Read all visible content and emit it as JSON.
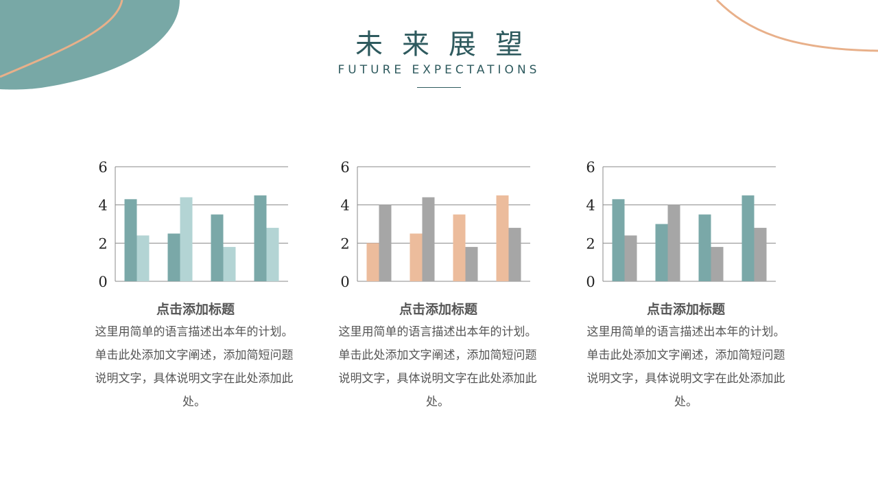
{
  "header": {
    "title": "未来展望",
    "subtitle": "FUTURE EXPECTATIONS"
  },
  "colors": {
    "teal": "#7aa8a8",
    "light_teal": "#b3d4d4",
    "peach": "#ecbc9c",
    "gray": "#a6a6a6",
    "accent_line": "#e8b08a"
  },
  "cards": [
    {
      "title": "点击添加标题",
      "body": "这里用简单的语言描述出本年的计划。单击此处添加文字阐述，添加简短问题说明文字，具体说明文字在此处添加此处。"
    },
    {
      "title": "点击添加标题",
      "body": "这里用简单的语言描述出本年的计划。单击此处添加文字阐述，添加简短问题说明文字，具体说明文字在此处添加此处。"
    },
    {
      "title": "点击添加标题",
      "body": "这里用简单的语言描述出本年的计划。单击此处添加文字阐述，添加简短问题说明文字，具体说明文字在此处添加此处。"
    }
  ],
  "chart_data": [
    {
      "type": "bar",
      "ylim": [
        0,
        6
      ],
      "yticks": [
        "0",
        "2",
        "4",
        "6"
      ],
      "grid": true,
      "series": [
        {
          "values": [
            4.3,
            2.5,
            3.5,
            4.5
          ],
          "color": "#7aa8a8"
        },
        {
          "values": [
            2.4,
            4.4,
            1.8,
            2.8
          ],
          "color": "#b3d4d4"
        }
      ]
    },
    {
      "type": "bar",
      "ylim": [
        0,
        6
      ],
      "yticks": [
        "0",
        "2",
        "4",
        "6"
      ],
      "grid": true,
      "series": [
        {
          "values": [
            2.0,
            2.5,
            3.5,
            4.5
          ],
          "color": "#ecbc9c"
        },
        {
          "values": [
            4.0,
            4.4,
            1.8,
            2.8
          ],
          "color": "#a6a6a6"
        }
      ]
    },
    {
      "type": "bar",
      "ylim": [
        0,
        6
      ],
      "yticks": [
        "0",
        "2",
        "4",
        "6"
      ],
      "grid": true,
      "series": [
        {
          "values": [
            4.3,
            3.0,
            3.5,
            4.5
          ],
          "color": "#7aa8a8"
        },
        {
          "values": [
            2.4,
            4.0,
            1.8,
            2.8
          ],
          "color": "#a6a6a6"
        }
      ]
    }
  ]
}
